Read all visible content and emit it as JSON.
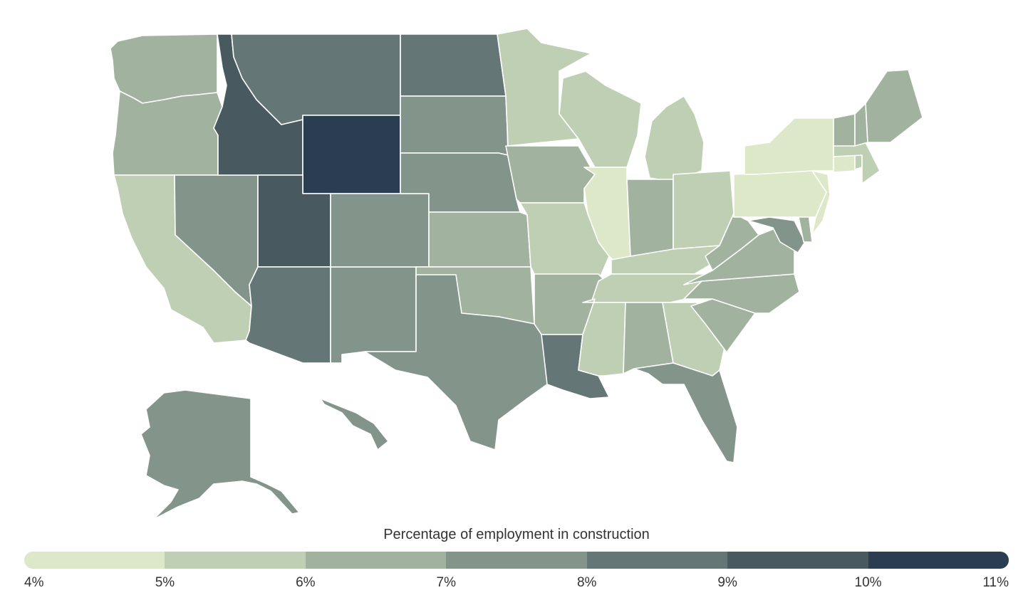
{
  "legend": {
    "title": "Percentage of employment in construction",
    "ticks": [
      "4%",
      "5%",
      "6%",
      "7%",
      "8%",
      "9%",
      "10%",
      "11%"
    ],
    "colors": [
      "#dde8c8",
      "#bfcfb4",
      "#a1b39f",
      "#83948a",
      "#657676",
      "#48595f",
      "#2b3d50"
    ]
  },
  "chart_data": {
    "type": "heatmap",
    "title": "",
    "subtitle": "",
    "measure": "Percentage of employment in construction",
    "bins": [
      {
        "range": [
          4,
          5
        ],
        "color": "#dde8c8"
      },
      {
        "range": [
          5,
          6
        ],
        "color": "#bfcfb4"
      },
      {
        "range": [
          6,
          7
        ],
        "color": "#a1b39f"
      },
      {
        "range": [
          7,
          8
        ],
        "color": "#83948a"
      },
      {
        "range": [
          8,
          9
        ],
        "color": "#657676"
      },
      {
        "range": [
          9,
          10
        ],
        "color": "#48595f"
      },
      {
        "range": [
          10,
          11
        ],
        "color": "#2b3d50"
      }
    ],
    "states": {
      "WA": 6,
      "OR": 6,
      "CA": 5,
      "NV": 7,
      "ID": 9,
      "MT": 8,
      "WY": 10,
      "UT": 9,
      "AZ": 8,
      "NM": 7,
      "CO": 7,
      "ND": 8,
      "SD": 7,
      "NE": 7,
      "KS": 6,
      "OK": 6,
      "TX": 7,
      "MN": 5,
      "IA": 6,
      "MO": 5,
      "AR": 6,
      "LA": 8,
      "WI": 5,
      "IL": 4,
      "MI": 5,
      "IN": 6,
      "OH": 5,
      "KY": 5,
      "TN": 5,
      "MS": 5,
      "AL": 6,
      "GA": 5,
      "FL": 7,
      "SC": 6,
      "NC": 6,
      "VA": 6,
      "WV": 6,
      "MD": 7,
      "DE": 6,
      "PA": 4,
      "NY": 4,
      "NJ": 4,
      "CT": 4,
      "RI": 5,
      "MA": 5,
      "VT": 6,
      "NH": 6,
      "ME": 6,
      "AK": 7,
      "HI": 7
    }
  }
}
